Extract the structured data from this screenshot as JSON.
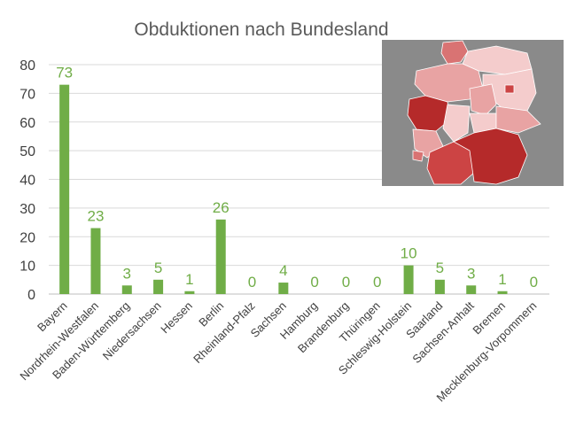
{
  "chart_data": {
    "type": "bar",
    "title": "Obduktionen nach Bundesland",
    "xlabel": "",
    "ylabel": "",
    "ylim": [
      0,
      80
    ],
    "yticks": [
      0,
      10,
      20,
      30,
      40,
      50,
      60,
      70,
      80
    ],
    "grid": true,
    "legend": "none",
    "bar_color": "#70ad47",
    "label_color": "#70ad47",
    "categories": [
      "Bayern",
      "Nordrhein-Westfalen",
      "Baden-Württemberg",
      "Niedersachsen",
      "Hessen",
      "Berlin",
      "Rheinland-Pfalz",
      "Sachsen",
      "Hamburg",
      "Brandenburg",
      "Thüringen",
      "Schleswig-Holstein",
      "Saarland",
      "Sachsen-Anhalt",
      "Bremen",
      "Mecklenburg-Vorpommern"
    ],
    "values": [
      73,
      23,
      3,
      5,
      1,
      26,
      0,
      4,
      0,
      0,
      0,
      10,
      5,
      3,
      1,
      0
    ]
  },
  "inset_map": {
    "description_icon": "germany-choropleth-map",
    "colors": {
      "background": "#8a8a8a",
      "lightest": "#f4cccc",
      "light": "#e8a3a3",
      "medium": "#d97373",
      "strong": "#cc4444",
      "darkest": "#b52a2a"
    }
  }
}
